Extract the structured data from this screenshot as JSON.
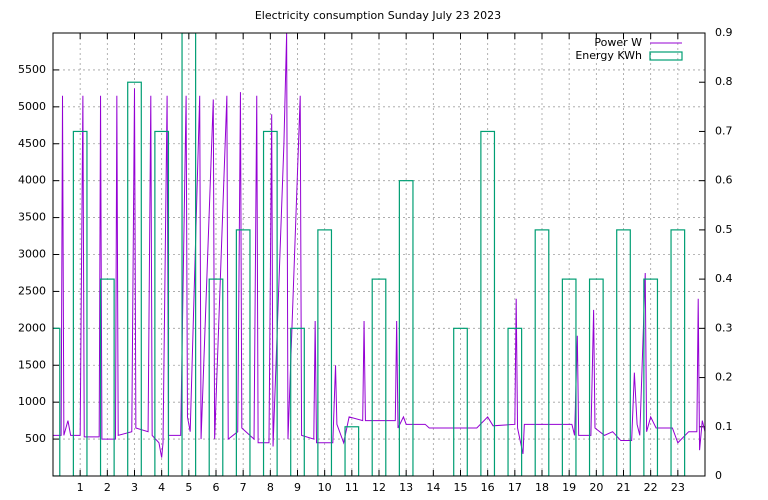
{
  "chart_data": {
    "type": "line",
    "title": "Electricity consumption Sunday July 23 2023",
    "xlim": [
      0,
      24
    ],
    "xticks": [
      1,
      2,
      3,
      4,
      5,
      6,
      7,
      8,
      9,
      10,
      11,
      12,
      13,
      14,
      15,
      16,
      17,
      18,
      19,
      20,
      21,
      22,
      23
    ],
    "ylim": [
      0,
      6000
    ],
    "yticks": [
      500,
      1000,
      1500,
      2000,
      2500,
      3000,
      3500,
      4000,
      4500,
      5000,
      5500
    ],
    "y2lim": [
      0,
      0.9
    ],
    "y2ticks": [
      0,
      0.1,
      0.2,
      0.3,
      0.4,
      0.5,
      0.6,
      0.7,
      0.8,
      0.9
    ],
    "grid": true,
    "legend": "top-right",
    "series": [
      {
        "name": "Power W",
        "color": "#9400d3",
        "type": "line",
        "x": [
          0.0,
          0.3,
          0.35,
          0.4,
          0.55,
          0.65,
          1.0,
          1.1,
          1.15,
          1.7,
          1.75,
          1.8,
          2.3,
          2.35,
          2.4,
          2.9,
          3.0,
          3.05,
          3.5,
          3.6,
          3.65,
          3.9,
          4.0,
          4.05,
          4.2,
          4.25,
          4.7,
          4.9,
          4.95,
          5.05,
          5.4,
          5.45,
          5.9,
          5.95,
          6.4,
          6.45,
          6.8,
          6.9,
          6.95,
          7.4,
          7.5,
          7.55,
          7.95,
          8.05,
          8.1,
          8.5,
          8.6,
          8.65,
          9.1,
          9.15,
          9.6,
          9.65,
          9.7,
          10.3,
          10.4,
          10.45,
          10.7,
          10.9,
          11.4,
          11.45,
          11.5,
          12.6,
          12.65,
          12.7,
          12.9,
          13.0,
          13.7,
          13.85,
          15.6,
          16.0,
          16.2,
          17.0,
          17.05,
          17.1,
          17.3,
          17.35,
          19.1,
          19.2,
          19.3,
          19.35,
          19.8,
          19.9,
          19.95,
          20.3,
          20.6,
          20.9,
          21.3,
          21.4,
          21.5,
          21.6,
          21.8,
          21.85,
          22.0,
          22.2,
          22.8,
          23.0,
          23.4,
          23.7,
          23.75,
          23.8,
          23.9,
          24.0
        ],
        "values": [
          550,
          550,
          5150,
          550,
          750,
          550,
          550,
          5150,
          530,
          530,
          5150,
          500,
          500,
          5150,
          550,
          600,
          5250,
          650,
          600,
          5150,
          550,
          450,
          250,
          450,
          5150,
          550,
          550,
          5150,
          800,
          600,
          5150,
          500,
          5100,
          500,
          5150,
          500,
          600,
          5200,
          650,
          500,
          5150,
          450,
          450,
          4900,
          400,
          4500,
          6000,
          500,
          5150,
          550,
          500,
          2100,
          450,
          450,
          1500,
          700,
          450,
          800,
          750,
          2100,
          750,
          750,
          2100,
          650,
          800,
          700,
          700,
          650,
          650,
          800,
          680,
          700,
          2400,
          650,
          300,
          700,
          700,
          550,
          1900,
          550,
          550,
          2250,
          650,
          550,
          600,
          480,
          480,
          1400,
          700,
          550,
          2750,
          600,
          800,
          650,
          650,
          450,
          600,
          600,
          2400,
          350,
          750,
          600
        ]
      },
      {
        "name": "Energy KWh",
        "color": "#009e73",
        "type": "bar",
        "axis": "y2",
        "x": [
          0,
          1,
          2,
          3,
          4,
          5,
          6,
          7,
          8,
          9,
          10,
          11,
          12,
          13,
          14,
          15,
          16,
          17,
          18,
          19,
          20,
          21,
          22,
          23
        ],
        "values": [
          0.3,
          0.7,
          0.4,
          0.8,
          0.7,
          0.9,
          0.4,
          0.5,
          0.7,
          0.3,
          0.5,
          0.1,
          0.4,
          0.6,
          0,
          0.3,
          0.7,
          0.3,
          0.5,
          0.4,
          0.4,
          0.5,
          0.4,
          0.5
        ]
      }
    ]
  }
}
